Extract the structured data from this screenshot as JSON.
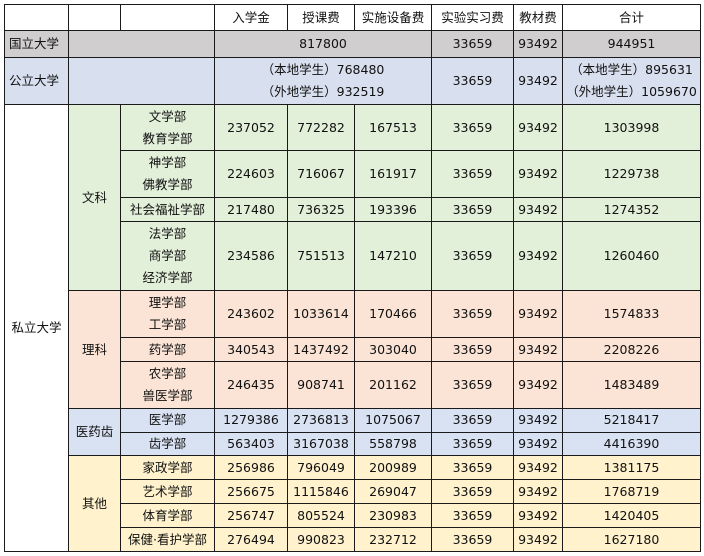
{
  "header": {
    "columns": [
      "入学金",
      "授课费",
      "实施设备费",
      "实验实习费",
      "教材费",
      "合计"
    ]
  },
  "colors": {
    "national": "#d0cecf",
    "public": "#d8dfee",
    "humanities": "#e2efd9",
    "science": "#fbe4d6",
    "medical": "#d9e2f3",
    "other": "#fff2cc"
  },
  "national": {
    "label": "国立大学",
    "combined": "817800",
    "lab": "33659",
    "materials": "93492",
    "total": "944951"
  },
  "public": {
    "label": "公立大学",
    "combined_lines": [
      "（本地学生）768480",
      "（外地学生）932519"
    ],
    "lab": "33659",
    "materials": "93492",
    "total_lines": [
      "（本地学生）895631",
      "（外地学生）1059670"
    ]
  },
  "private": {
    "label": "私立大学",
    "groups": [
      {
        "label": "文科",
        "color": "#e2efd9",
        "rows": [
          {
            "departments": [
              "文学部",
              "教育学部"
            ],
            "entry": "237052",
            "tuition": "772282",
            "facility": "167513",
            "lab": "33659",
            "materials": "93492",
            "total": "1303998"
          },
          {
            "departments": [
              "神学部",
              "佛教学部"
            ],
            "entry": "224603",
            "tuition": "716067",
            "facility": "161917",
            "lab": "33659",
            "materials": "93492",
            "total": "1229738"
          },
          {
            "departments": [
              "社会福祉学部"
            ],
            "entry": "217480",
            "tuition": "736325",
            "facility": "193396",
            "lab": "33659",
            "materials": "93492",
            "total": "1274352"
          },
          {
            "departments": [
              "法学部",
              "商学部",
              "经济学部"
            ],
            "entry": "234586",
            "tuition": "751513",
            "facility": "147210",
            "lab": "33659",
            "materials": "93492",
            "total": "1260460"
          }
        ]
      },
      {
        "label": "理科",
        "color": "#fbe4d6",
        "rows": [
          {
            "departments": [
              "理学部",
              "工学部"
            ],
            "entry": "243602",
            "tuition": "1033614",
            "facility": "170466",
            "lab": "33659",
            "materials": "93492",
            "total": "1574833"
          },
          {
            "departments": [
              "药学部"
            ],
            "entry": "340543",
            "tuition": "1437492",
            "facility": "303040",
            "lab": "33659",
            "materials": "93492",
            "total": "2208226"
          },
          {
            "departments": [
              "农学部",
              "兽医学部"
            ],
            "entry": "246435",
            "tuition": "908741",
            "facility": "201162",
            "lab": "33659",
            "materials": "93492",
            "total": "1483489"
          }
        ]
      },
      {
        "label": "医药齿",
        "color": "#d9e2f3",
        "rows": [
          {
            "departments": [
              "医学部"
            ],
            "entry": "1279386",
            "tuition": "2736813",
            "facility": "1075067",
            "lab": "33659",
            "materials": "93492",
            "total": "5218417"
          },
          {
            "departments": [
              "齿学部"
            ],
            "entry": "563403",
            "tuition": "3167038",
            "facility": "558798",
            "lab": "33659",
            "materials": "93492",
            "total": "4416390"
          }
        ]
      },
      {
        "label": "其他",
        "color": "#fff2cc",
        "rows": [
          {
            "departments": [
              "家政学部"
            ],
            "entry": "256986",
            "tuition": "796049",
            "facility": "200989",
            "lab": "33659",
            "materials": "93492",
            "total": "1381175"
          },
          {
            "departments": [
              "艺术学部"
            ],
            "entry": "256675",
            "tuition": "1115846",
            "facility": "269047",
            "lab": "33659",
            "materials": "93492",
            "total": "1768719"
          },
          {
            "departments": [
              "体育学部"
            ],
            "entry": "256747",
            "tuition": "805524",
            "facility": "230983",
            "lab": "33659",
            "materials": "93492",
            "total": "1420405"
          },
          {
            "departments": [
              "保健·看护学部"
            ],
            "entry": "276494",
            "tuition": "990823",
            "facility": "232712",
            "lab": "33659",
            "materials": "93492",
            "total": "1627180"
          }
        ]
      }
    ]
  }
}
